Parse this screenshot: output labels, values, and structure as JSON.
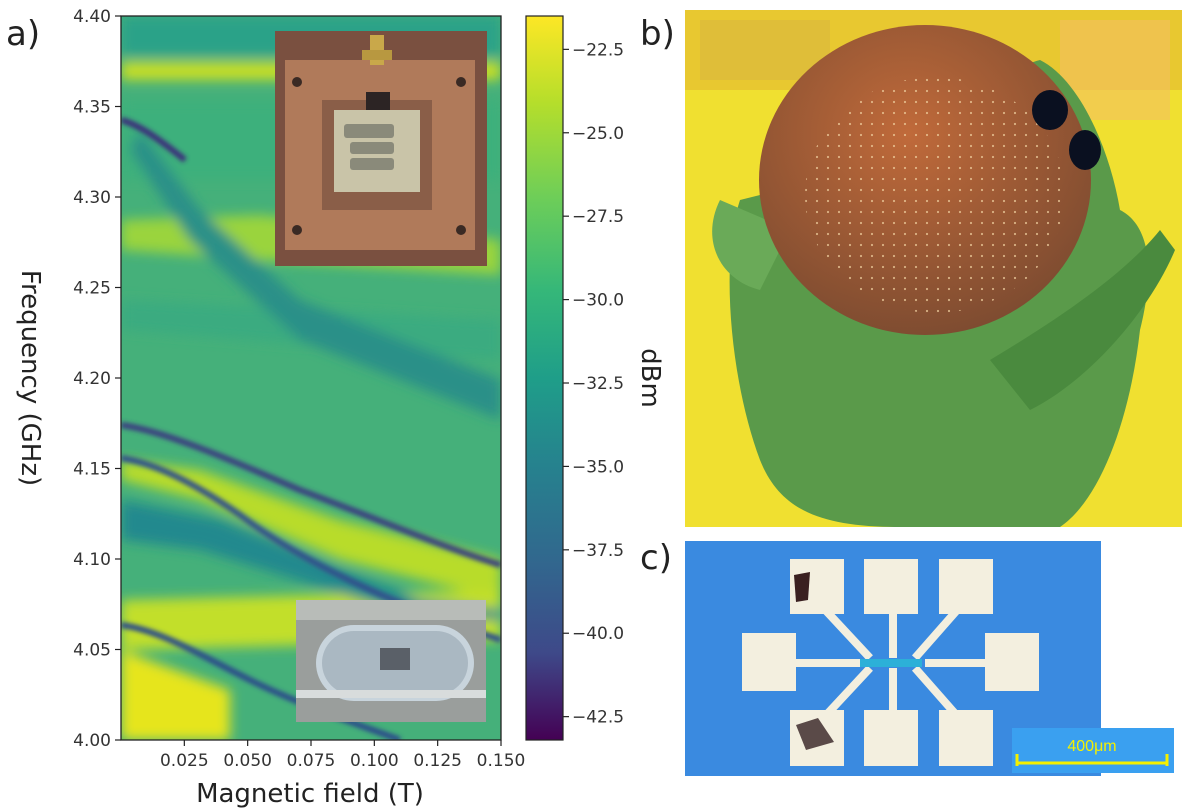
{
  "panels": {
    "a": "a)",
    "b": "b)",
    "c": "c)"
  },
  "scale_bar_label": "400μm",
  "chart_data": {
    "type": "heatmap",
    "xlabel": "Magnetic field (T)",
    "ylabel": "Frequency (GHz)",
    "colorbar_label": "dBm",
    "colormap": "viridis",
    "xlim": [
      0.0,
      0.15
    ],
    "ylim": [
      4.0,
      4.4
    ],
    "clim": [
      -43.2,
      -21.5
    ],
    "x_ticks": [
      0.025,
      0.05,
      0.075,
      0.1,
      0.125,
      0.15
    ],
    "x_tick_labels": [
      "0.025",
      "0.050",
      "0.075",
      "0.100",
      "0.125",
      "0.150"
    ],
    "y_ticks": [
      4.0,
      4.05,
      4.1,
      4.15,
      4.2,
      4.25,
      4.3,
      4.35,
      4.4
    ],
    "y_tick_labels": [
      "4.00",
      "4.05",
      "4.10",
      "4.15",
      "4.20",
      "4.25",
      "4.30",
      "4.35",
      "4.40"
    ],
    "colorbar_ticks": [
      -22.5,
      -25.0,
      -27.5,
      -30.0,
      -32.5,
      -35.0,
      -37.5,
      -40.0,
      -42.5
    ],
    "colorbar_tick_labels": [
      "−22.5",
      "−25.0",
      "−27.5",
      "−30.0",
      "−32.5",
      "−35.0",
      "−37.5",
      "−40.0",
      "−42.5"
    ],
    "grid": false
  },
  "colors": {
    "viridis_low": "#440154",
    "viridis_mid": "#21918c",
    "viridis_high": "#fde725",
    "gloves": "#5a9a4a",
    "wafer": "#9a5a3a",
    "chip_background": "#3a8ae0",
    "pad": "#f3efdf",
    "scale_bar": "#f5f000"
  }
}
